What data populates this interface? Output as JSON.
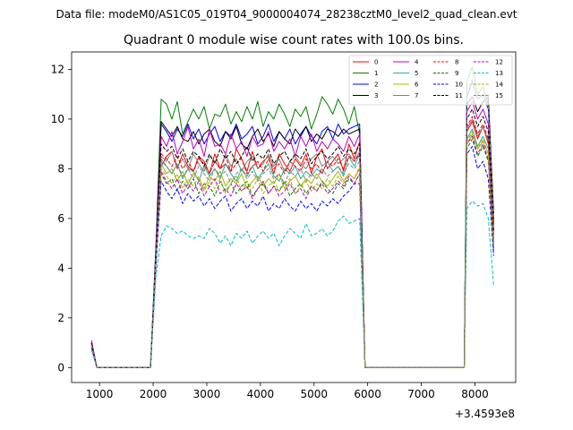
{
  "suptitle": "Data file: modeM0/AS1C05_019T04_9000004074_28238cztM0_level2_quad_clean.evt",
  "chart_data": {
    "type": "line",
    "title": "Quadrant 0 module wise count rates with 100.0s bins.",
    "xlabel": "",
    "ylabel": "",
    "x_offset_label": "+3.4593e8",
    "xlim": [
      480,
      8760
    ],
    "ylim": [
      -0.6,
      12.7
    ],
    "xticks": [
      1000,
      2000,
      3000,
      4000,
      5000,
      6000,
      7000,
      8000
    ],
    "yticks": [
      0,
      2,
      4,
      6,
      8,
      10,
      12
    ],
    "grid": false,
    "legend_placement": "top-right",
    "legend_columns": 4,
    "gap_intervals": [
      [
        1000,
        1950
      ],
      [
        5900,
        7800
      ]
    ],
    "x": [
      850,
      950,
      1950,
      2050,
      2150,
      2250,
      2350,
      2450,
      2550,
      2650,
      2750,
      2850,
      2950,
      3050,
      3150,
      3250,
      3350,
      3450,
      3550,
      3650,
      3750,
      3850,
      3950,
      4050,
      4150,
      4250,
      4350,
      4450,
      4550,
      4650,
      4750,
      4850,
      4950,
      5050,
      5150,
      5250,
      5350,
      5450,
      5550,
      5650,
      5750,
      5850,
      5950,
      7800,
      7850,
      7950,
      8050,
      8150,
      8250,
      8350
    ],
    "series": [
      {
        "name": "0",
        "color": "#ff0000",
        "dash": "solid",
        "values": [
          1.0,
          0.0,
          0.0,
          4.5,
          8.1,
          8.5,
          8.7,
          8.0,
          8.6,
          8.1,
          7.9,
          8.5,
          8.3,
          7.8,
          8.6,
          8.0,
          8.2,
          7.9,
          8.8,
          8.4,
          7.9,
          8.7,
          8.0,
          8.3,
          8.5,
          7.8,
          8.6,
          8.2,
          7.9,
          8.4,
          8.1,
          8.6,
          7.8,
          8.5,
          8.8,
          8.0,
          8.3,
          8.6,
          7.9,
          9.0,
          8.4,
          9.1,
          0.0,
          0.0,
          9.5,
          9.9,
          9.2,
          9.7,
          9.0,
          5.0
        ]
      },
      {
        "name": "1",
        "color": "#008000",
        "dash": "solid",
        "values": [
          0.9,
          0.0,
          0.0,
          4.8,
          10.8,
          10.6,
          10.0,
          10.7,
          9.4,
          9.9,
          10.4,
          10.0,
          10.5,
          9.6,
          10.2,
          10.1,
          10.6,
          9.8,
          10.3,
          9.9,
          10.5,
          10.0,
          10.7,
          9.7,
          10.3,
          10.0,
          10.6,
          10.2,
          9.7,
          10.4,
          10.1,
          10.5,
          9.6,
          10.2,
          10.9,
          10.6,
          10.2,
          10.8,
          10.4,
          9.8,
          10.5,
          9.4,
          0.0,
          0.0,
          11.5,
          12.1,
          11.0,
          11.3,
          10.6,
          6.0
        ]
      },
      {
        "name": "2",
        "color": "#0000ff",
        "dash": "solid",
        "values": [
          1.0,
          0.0,
          0.0,
          4.6,
          9.8,
          9.5,
          9.1,
          9.6,
          9.3,
          9.8,
          9.2,
          9.6,
          9.0,
          9.4,
          9.7,
          9.1,
          9.5,
          9.3,
          9.8,
          9.2,
          9.4,
          9.7,
          9.0,
          9.3,
          9.8,
          9.1,
          9.5,
          9.2,
          9.6,
          9.0,
          9.4,
          9.7,
          9.3,
          9.0,
          9.5,
          9.7,
          9.2,
          9.8,
          9.4,
          9.6,
          9.7,
          9.8,
          0.0,
          0.0,
          10.9,
          11.5,
          10.8,
          11.0,
          10.4,
          5.8
        ]
      },
      {
        "name": "3",
        "color": "#000000",
        "dash": "solid",
        "values": [
          1.0,
          0.0,
          0.0,
          4.6,
          9.9,
          9.6,
          9.3,
          9.7,
          9.2,
          9.1,
          9.5,
          9.0,
          9.4,
          9.6,
          9.1,
          8.9,
          9.5,
          9.2,
          9.7,
          9.0,
          8.8,
          9.3,
          9.6,
          9.1,
          9.4,
          8.9,
          9.5,
          9.2,
          9.0,
          9.6,
          9.3,
          9.7,
          9.1,
          9.4,
          9.2,
          9.6,
          9.5,
          9.3,
          9.6,
          9.4,
          9.5,
          9.6,
          0.0,
          0.0,
          10.6,
          10.9,
          10.3,
          10.7,
          10.9,
          6.2
        ]
      },
      {
        "name": "4",
        "color": "#c000c0",
        "dash": "solid",
        "values": [
          1.1,
          0.0,
          0.0,
          4.7,
          9.3,
          8.9,
          9.5,
          8.6,
          9.1,
          9.7,
          8.8,
          9.2,
          8.5,
          9.6,
          8.9,
          9.0,
          8.6,
          9.4,
          8.8,
          9.1,
          8.5,
          9.3,
          8.9,
          9.0,
          9.5,
          8.7,
          9.1,
          8.8,
          9.2,
          8.5,
          9.3,
          8.9,
          9.4,
          8.7,
          9.1,
          8.8,
          9.2,
          9.0,
          8.7,
          9.3,
          8.9,
          9.4,
          0.0,
          0.0,
          10.3,
          10.7,
          10.0,
          10.4,
          9.8,
          5.5
        ]
      },
      {
        "name": "5",
        "color": "#20b0a0",
        "dash": "solid",
        "values": [
          0.9,
          0.0,
          0.0,
          4.3,
          8.3,
          8.1,
          7.8,
          8.2,
          7.6,
          8.0,
          7.9,
          7.5,
          8.1,
          7.7,
          8.0,
          7.6,
          8.2,
          7.8,
          7.5,
          8.0,
          7.7,
          8.1,
          7.6,
          7.9,
          8.2,
          7.7,
          7.5,
          8.0,
          7.8,
          8.1,
          7.6,
          7.9,
          7.7,
          8.0,
          7.8,
          8.3,
          7.9,
          8.1,
          7.7,
          8.5,
          8.1,
          8.6,
          0.0,
          0.0,
          9.2,
          9.6,
          8.9,
          9.3,
          8.8,
          5.0
        ]
      },
      {
        "name": "6",
        "color": "#b0b000",
        "dash": "solid",
        "values": [
          0.9,
          0.0,
          0.0,
          4.2,
          8.2,
          7.8,
          8.0,
          7.5,
          7.9,
          7.4,
          7.8,
          7.6,
          7.2,
          7.7,
          7.5,
          7.9,
          7.3,
          7.6,
          7.4,
          7.8,
          7.2,
          7.5,
          7.7,
          7.3,
          7.6,
          7.4,
          7.8,
          7.2,
          7.5,
          7.7,
          7.3,
          7.6,
          7.4,
          7.8,
          7.5,
          7.3,
          7.6,
          7.9,
          7.5,
          7.8,
          7.6,
          8.0,
          0.0,
          0.0,
          9.0,
          9.4,
          8.8,
          9.1,
          8.6,
          4.8
        ]
      },
      {
        "name": "7",
        "color": "#808080",
        "dash": "solid",
        "values": [
          0.9,
          0.0,
          0.0,
          4.3,
          8.5,
          8.3,
          8.7,
          8.1,
          8.4,
          8.0,
          8.6,
          8.2,
          7.9,
          8.5,
          8.3,
          8.0,
          8.6,
          8.1,
          8.4,
          7.9,
          8.3,
          8.5,
          8.0,
          8.2,
          8.6,
          8.1,
          8.4,
          7.9,
          8.3,
          8.5,
          8.2,
          8.0,
          8.4,
          8.6,
          8.1,
          8.3,
          8.5,
          8.2,
          8.4,
          8.6,
          8.3,
          8.7,
          0.0,
          0.0,
          9.6,
          10.0,
          9.3,
          9.7,
          9.1,
          5.2
        ]
      },
      {
        "name": "8",
        "color": "#ff0000",
        "dash": "dashed",
        "values": [
          0.9,
          0.0,
          0.0,
          4.4,
          8.6,
          8.4,
          8.1,
          8.5,
          8.0,
          8.3,
          7.9,
          8.4,
          8.2,
          7.8,
          8.3,
          8.0,
          8.5,
          7.9,
          8.2,
          8.4,
          7.8,
          8.1,
          8.3,
          7.9,
          8.4,
          8.0,
          8.2,
          7.8,
          8.3,
          8.1,
          7.9,
          8.4,
          8.0,
          8.2,
          7.8,
          8.3,
          8.1,
          8.4,
          8.0,
          8.5,
          8.3,
          8.6,
          0.0,
          0.0,
          9.7,
          10.1,
          9.4,
          9.8,
          9.2,
          5.2
        ]
      },
      {
        "name": "9",
        "color": "#008000",
        "dash": "dashed",
        "values": [
          0.9,
          0.0,
          0.0,
          4.1,
          7.8,
          7.4,
          7.6,
          7.1,
          7.5,
          7.2,
          7.6,
          7.0,
          7.4,
          7.3,
          6.9,
          7.5,
          7.1,
          7.4,
          7.0,
          7.3,
          7.5,
          6.9,
          7.2,
          7.4,
          7.0,
          7.3,
          7.1,
          7.5,
          6.9,
          7.2,
          7.4,
          7.0,
          7.3,
          7.1,
          7.5,
          7.2,
          7.0,
          7.4,
          7.2,
          7.6,
          7.4,
          7.8,
          0.0,
          0.0,
          8.8,
          9.2,
          8.5,
          8.9,
          8.3,
          4.6
        ]
      },
      {
        "name": "10",
        "color": "#0000ff",
        "dash": "dashed",
        "values": [
          0.8,
          0.0,
          0.0,
          4.0,
          7.5,
          7.1,
          6.8,
          7.2,
          6.6,
          7.0,
          6.7,
          6.9,
          6.5,
          6.8,
          6.4,
          6.7,
          6.9,
          6.3,
          6.6,
          6.8,
          6.4,
          6.7,
          6.5,
          6.9,
          6.3,
          6.6,
          6.4,
          6.8,
          6.5,
          6.3,
          6.7,
          6.4,
          6.6,
          6.3,
          6.7,
          6.5,
          6.8,
          6.6,
          6.9,
          7.1,
          7.4,
          7.4,
          0.0,
          0.0,
          8.6,
          8.9,
          8.0,
          8.3,
          7.6,
          4.5
        ]
      },
      {
        "name": "11",
        "color": "#000000",
        "dash": "dashed",
        "values": [
          1.0,
          0.0,
          0.0,
          4.5,
          9.0,
          8.7,
          8.9,
          8.4,
          8.8,
          8.3,
          8.7,
          8.5,
          8.1,
          8.6,
          8.2,
          8.8,
          8.4,
          8.7,
          8.2,
          8.5,
          8.9,
          8.3,
          8.6,
          8.4,
          8.8,
          8.2,
          8.5,
          8.7,
          8.3,
          8.6,
          8.4,
          8.8,
          8.2,
          8.5,
          8.7,
          8.4,
          8.6,
          8.9,
          8.5,
          8.8,
          8.6,
          9.0,
          0.0,
          0.0,
          10.0,
          10.4,
          9.7,
          10.1,
          9.5,
          5.4
        ]
      },
      {
        "name": "12",
        "color": "#c000c0",
        "dash": "dashed",
        "values": [
          0.9,
          0.0,
          0.0,
          4.2,
          7.9,
          7.5,
          7.2,
          7.6,
          7.0,
          7.4,
          7.1,
          7.5,
          6.9,
          7.3,
          7.6,
          7.0,
          7.2,
          6.9,
          7.4,
          7.1,
          7.3,
          6.8,
          7.2,
          7.5,
          7.0,
          7.3,
          6.9,
          7.1,
          7.4,
          7.0,
          7.2,
          6.8,
          7.3,
          7.1,
          7.4,
          7.0,
          7.2,
          7.5,
          7.3,
          7.7,
          7.4,
          7.8,
          0.0,
          0.0,
          9.0,
          9.3,
          8.6,
          9.0,
          8.4,
          4.8
        ]
      },
      {
        "name": "13",
        "color": "#00c0c0",
        "dash": "dashed",
        "values": [
          0.7,
          0.0,
          0.0,
          3.6,
          5.3,
          5.7,
          5.6,
          5.4,
          5.5,
          5.3,
          5.2,
          5.3,
          5.2,
          5.6,
          5.4,
          5.0,
          5.3,
          4.9,
          5.4,
          5.2,
          5.5,
          5.0,
          5.3,
          5.5,
          5.2,
          5.4,
          4.9,
          5.3,
          5.6,
          5.4,
          5.2,
          5.8,
          5.3,
          5.4,
          5.6,
          5.3,
          5.5,
          5.9,
          6.1,
          5.8,
          5.9,
          6.0,
          0.0,
          0.0,
          6.4,
          6.7,
          6.5,
          6.6,
          6.0,
          3.3
        ]
      },
      {
        "name": "14",
        "color": "#b0b000",
        "dash": "dashed",
        "values": [
          0.9,
          0.0,
          0.0,
          4.2,
          8.0,
          7.7,
          7.4,
          7.8,
          7.2,
          7.6,
          7.3,
          7.7,
          7.1,
          7.5,
          7.2,
          7.6,
          7.0,
          7.4,
          7.7,
          7.1,
          7.5,
          7.2,
          7.6,
          7.0,
          7.3,
          7.5,
          7.1,
          7.4,
          7.6,
          7.0,
          7.3,
          7.5,
          7.1,
          7.4,
          7.2,
          7.6,
          7.3,
          7.7,
          7.4,
          7.8,
          7.6,
          8.1,
          0.0,
          0.0,
          9.1,
          9.5,
          8.8,
          9.2,
          8.6,
          4.9
        ]
      },
      {
        "name": "15",
        "color": "#808080",
        "dash": "dashed",
        "values": [
          0.9,
          0.0,
          0.0,
          4.3,
          8.4,
          8.1,
          7.8,
          8.2,
          7.7,
          8.0,
          7.6,
          8.1,
          7.8,
          7.5,
          8.0,
          7.7,
          7.9,
          7.4,
          7.8,
          8.0,
          7.6,
          7.9,
          7.5,
          7.8,
          8.0,
          7.6,
          7.8,
          7.4,
          7.9,
          7.7,
          8.0,
          7.5,
          7.8,
          7.6,
          8.0,
          7.7,
          7.9,
          8.1,
          7.8,
          8.2,
          8.0,
          8.3,
          0.0,
          0.0,
          11.2,
          11.6,
          10.8,
          11.0,
          10.5,
          6.0
        ]
      }
    ]
  }
}
